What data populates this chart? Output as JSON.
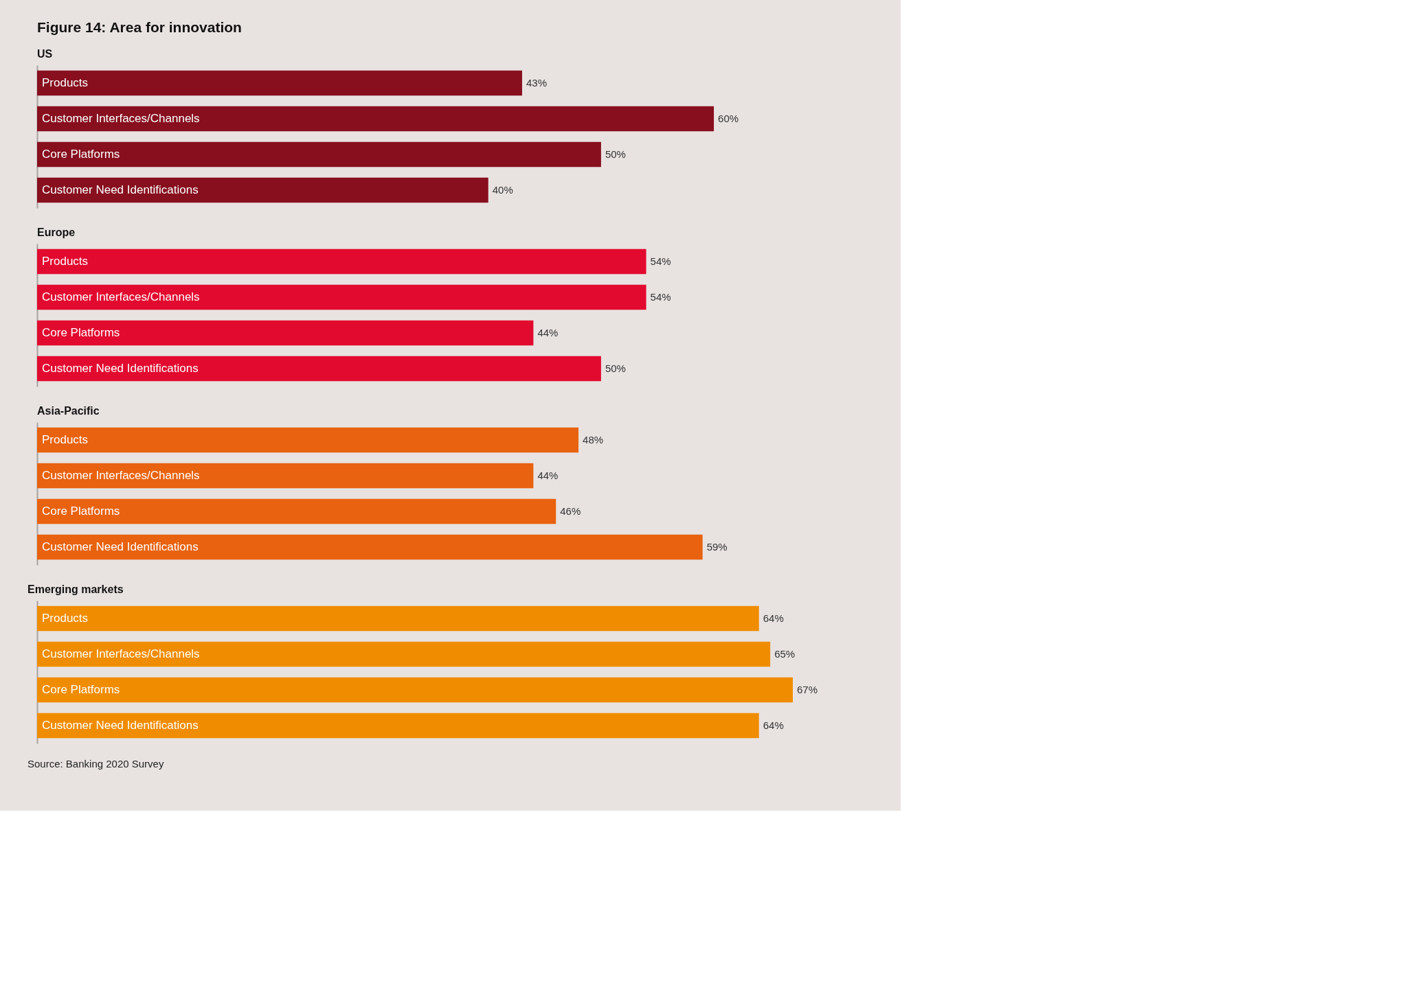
{
  "chart_data": [
    {
      "type": "bar",
      "orientation": "horizontal",
      "title": "Figure 14: Area for innovation",
      "subtitle": "US",
      "categories": [
        "Products",
        "Customer Interfaces/Channels",
        "Core Platforms",
        "Customer Need Identifications"
      ],
      "values": [
        43,
        60,
        50,
        40
      ],
      "value_labels": [
        "43%",
        "60%",
        "50%",
        "40%"
      ],
      "color": "#870f1e",
      "grid": false
    },
    {
      "type": "bar",
      "orientation": "horizontal",
      "title": "Europe",
      "categories": [
        "Products",
        "Customer Interfaces/Channels",
        "Core Platforms",
        "Customer Need Identifications"
      ],
      "values": [
        54,
        54,
        44,
        50
      ],
      "value_labels": [
        "54%",
        "54%",
        "44%",
        "50%"
      ],
      "color": "#e20a2f",
      "grid": false
    },
    {
      "type": "bar",
      "orientation": "horizontal",
      "title": "Asia-Pacific",
      "categories": [
        "Products",
        "Customer Interfaces/Channels",
        "Core Platforms",
        "Customer Need Identifications"
      ],
      "values": [
        48,
        44,
        46,
        59
      ],
      "value_labels": [
        "48%",
        "44%",
        "46%",
        "59%"
      ],
      "color": "#e8620f",
      "grid": false
    },
    {
      "type": "bar",
      "orientation": "horizontal",
      "title": "Emerging markets",
      "categories": [
        "Products",
        "Customer Interfaces/Channels",
        "Core Platforms",
        "Customer Need Identifications"
      ],
      "values": [
        64,
        65,
        67,
        64
      ],
      "value_labels": [
        "64%",
        "65%",
        "67%",
        "64%"
      ],
      "color": "#f08c00",
      "grid": false,
      "annotations": [
        "Source: Banking 2020 Survey"
      ]
    }
  ]
}
